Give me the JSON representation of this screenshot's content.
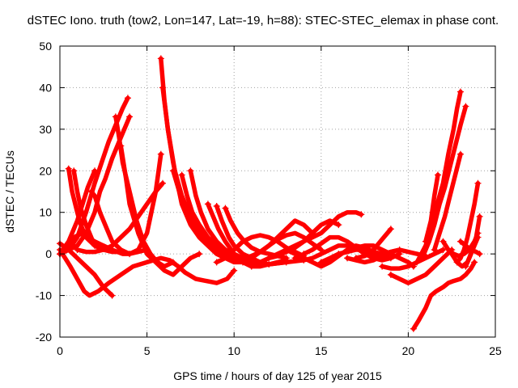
{
  "chart_data": {
    "type": "line",
    "title": "dSTEC Iono. truth (tow2, Lon=147, Lat=-19, h=88): STEC-STEC_elemax in phase cont.",
    "xlabel": "GPS time / hours of day 125 of year 2015",
    "ylabel": "dSTEC  / TECUs",
    "xlim": [
      0,
      25
    ],
    "ylim": [
      -20,
      50
    ],
    "xticks": [
      0,
      5,
      10,
      15,
      20,
      25
    ],
    "yticks": [
      -20,
      -10,
      0,
      10,
      20,
      30,
      40,
      50
    ],
    "grid": true,
    "legend": "none",
    "marker": "plus",
    "color": "#ff0000",
    "series": [
      {
        "x": [
          0.0,
          0.5,
          1.0,
          1.5,
          2.0,
          2.5,
          3.0
        ],
        "y": [
          2.5,
          1.0,
          -1.0,
          -3.0,
          -5.0,
          -8.0,
          -10.0
        ]
      },
      {
        "x": [
          0.0,
          0.3,
          0.6,
          1.0,
          1.4,
          1.7,
          2.2,
          2.8,
          3.5,
          4.2,
          5.0,
          5.8,
          6.3,
          6.8,
          7.2,
          7.8,
          8.4,
          9.0,
          9.6,
          10.0
        ],
        "y": [
          1.0,
          -1.0,
          -3.0,
          -6.0,
          -9.0,
          -10.0,
          -9.0,
          -7.0,
          -5.0,
          -3.0,
          -2.0,
          -1.0,
          -1.5,
          -3.0,
          -4.5,
          -6.0,
          -6.5,
          -7.0,
          -6.0,
          -4.0
        ]
      },
      {
        "x": [
          0.0,
          0.5,
          1.0,
          1.5,
          2.0,
          2.3,
          2.6,
          3.0,
          3.5,
          4.0
        ],
        "y": [
          0.0,
          1.0,
          2.0,
          5.0,
          10.0,
          15.0,
          18.0,
          23.0,
          28.0,
          33.0
        ]
      },
      {
        "x": [
          0.0,
          0.5,
          1.0,
          1.3,
          1.6,
          2.0
        ],
        "y": [
          0.0,
          3.0,
          8.0,
          12.0,
          16.0,
          20.0
        ]
      },
      {
        "x": [
          0.0,
          0.8,
          1.3,
          1.6,
          2.0,
          2.5,
          3.0,
          3.3,
          3.6,
          4.0,
          4.5,
          5.0,
          5.5,
          5.8
        ],
        "y": [
          0.0,
          4.0,
          5.0,
          4.0,
          3.0,
          2.0,
          1.0,
          0.5,
          0.0,
          0.0,
          1.0,
          5.0,
          15.0,
          24.0
        ]
      },
      {
        "x": [
          0.0,
          0.5,
          1.0,
          1.5,
          2.0,
          2.4,
          2.8,
          3.1,
          3.4,
          3.6,
          3.9
        ],
        "y": [
          0.0,
          1.0,
          4.0,
          10.0,
          17.0,
          22.0,
          27.0,
          30.0,
          33.0,
          35.0,
          37.5
        ]
      },
      {
        "x": [
          0.5,
          0.7,
          1.0,
          1.2,
          1.5,
          2.0,
          2.5,
          3.0,
          3.5,
          4.0
        ],
        "y": [
          20.5,
          15.0,
          10.0,
          7.0,
          4.0,
          2.0,
          1.0,
          0.5,
          0.5,
          0.0
        ]
      },
      {
        "x": [
          0.8,
          1.0,
          1.2,
          1.5,
          1.8,
          2.0
        ],
        "y": [
          20.0,
          15.0,
          11.0,
          7.0,
          4.0,
          2.0
        ]
      },
      {
        "x": [
          1.0,
          1.5,
          2.0,
          2.5,
          3.0,
          3.5,
          4.0,
          4.5,
          5.0,
          5.5,
          5.9
        ],
        "y": [
          1.0,
          0.5,
          0.5,
          1.0,
          2.0,
          4.0,
          6.0,
          9.0,
          12.0,
          15.0,
          17.0
        ]
      },
      {
        "x": [
          1.8,
          2.0,
          2.3,
          2.7,
          3.0,
          3.5,
          4.0,
          4.5,
          5.0
        ],
        "y": [
          15.0,
          14.0,
          10.0,
          6.0,
          3.0,
          1.0,
          0.0,
          0.5,
          1.0
        ]
      },
      {
        "x": [
          3.2,
          3.4,
          3.6,
          4.0,
          4.4,
          4.8,
          5.2,
          5.6,
          6.0,
          6.5
        ],
        "y": [
          33.0,
          28.0,
          22.0,
          15.0,
          8.0,
          3.0,
          0.0,
          -2.0,
          -3.0,
          -2.0
        ]
      },
      {
        "x": [
          3.5,
          3.8,
          4.0,
          4.5,
          5.0,
          5.5,
          6.0,
          6.5,
          7.0,
          7.5,
          8.0
        ],
        "y": [
          26.0,
          18.0,
          12.0,
          5.0,
          0.0,
          -2.0,
          -4.0,
          -5.0,
          -3.0,
          -1.0,
          0.0
        ]
      },
      {
        "x": [
          5.8,
          6.0,
          6.2,
          6.5,
          6.8,
          7.0,
          7.5,
          8.0,
          8.5,
          9.0,
          9.5,
          10.0,
          10.5,
          11.0
        ],
        "y": [
          47.0,
          37.0,
          30.0,
          22.0,
          16.0,
          12.0,
          7.0,
          4.0,
          2.0,
          0.0,
          -1.0,
          -2.0,
          -2.0,
          -1.5
        ]
      },
      {
        "x": [
          5.9,
          6.2,
          6.6,
          7.0,
          7.5,
          8.0,
          8.5,
          9.0,
          9.5,
          10.0
        ],
        "y": [
          40.0,
          30.0,
          20.0,
          14.0,
          9.0,
          6.0,
          3.0,
          1.0,
          0.0,
          -1.0
        ]
      },
      {
        "x": [
          6.5,
          7.0,
          7.5,
          8.0,
          8.5,
          9.0,
          9.5,
          10.0,
          11.0
        ],
        "y": [
          20.0,
          13.0,
          8.0,
          5.0,
          3.0,
          1.0,
          0.0,
          -1.0,
          -2.0
        ]
      },
      {
        "x": [
          7.0,
          7.3,
          7.6,
          8.0,
          8.5,
          9.0,
          9.5,
          10.0,
          11.0,
          12.0
        ],
        "y": [
          19.0,
          14.0,
          10.0,
          7.0,
          4.0,
          2.0,
          0.0,
          -1.0,
          -2.0,
          -2.5
        ]
      },
      {
        "x": [
          7.5,
          7.8,
          8.1,
          8.5,
          9.0,
          9.5,
          10.0,
          10.5,
          11.0,
          12.0,
          13.0
        ],
        "y": [
          20.0,
          14.0,
          10.0,
          6.0,
          3.0,
          1.0,
          0.0,
          -1.0,
          -2.0,
          -2.5,
          -2.0
        ]
      },
      {
        "x": [
          8.5,
          8.8,
          9.1,
          9.5,
          10.0,
          10.5,
          11.0,
          11.5,
          12.0,
          13.0,
          14.0
        ],
        "y": [
          12.0,
          9.0,
          6.0,
          3.0,
          0.0,
          -2.0,
          -3.0,
          -3.0,
          -2.5,
          -2.0,
          -1.5
        ]
      },
      {
        "x": [
          9.0,
          9.3,
          9.7,
          10.0,
          10.5,
          11.0,
          11.5,
          12.0,
          12.5,
          13.0
        ],
        "y": [
          11.5,
          8.0,
          4.0,
          2.0,
          0.0,
          -1.0,
          -2.0,
          -2.5,
          -2.0,
          -1.5
        ]
      },
      {
        "x": [
          9.5,
          9.8,
          10.2,
          10.6,
          11.0,
          11.5,
          12.0,
          12.5,
          13.0
        ],
        "y": [
          11.0,
          8.0,
          5.0,
          3.0,
          1.5,
          0.5,
          0.0,
          -0.5,
          -1.0
        ]
      },
      {
        "x": [
          9.0,
          9.5,
          10.0,
          10.5,
          11.0,
          11.5,
          12.0,
          12.5,
          13.0,
          13.5,
          14.0
        ],
        "y": [
          -2.0,
          -1.0,
          1.0,
          3.0,
          4.0,
          4.5,
          4.0,
          3.0,
          1.5,
          0.5,
          -0.5
        ]
      },
      {
        "x": [
          10.0,
          10.5,
          11.0,
          11.5,
          12.0,
          12.5,
          13.0,
          13.5,
          14.0,
          14.5,
          15.0
        ],
        "y": [
          -1.0,
          -1.0,
          -0.5,
          0.5,
          2.0,
          3.5,
          4.5,
          5.0,
          4.0,
          2.5,
          1.0
        ]
      },
      {
        "x": [
          10.5,
          11.0,
          11.5,
          12.0,
          12.5,
          13.0,
          13.5,
          14.0,
          14.5
        ],
        "y": [
          -2.0,
          -1.0,
          0.5,
          2.0,
          4.0,
          6.0,
          8.0,
          7.0,
          5.0
        ]
      },
      {
        "x": [
          11.0,
          11.5,
          12.0,
          12.5,
          13.0,
          13.5,
          14.0,
          14.5,
          15.0,
          15.5,
          16.0
        ],
        "y": [
          -3.0,
          -2.0,
          -1.0,
          0.0,
          1.0,
          2.0,
          3.0,
          5.0,
          7.0,
          8.0,
          7.0
        ]
      },
      {
        "x": [
          12.0,
          12.5,
          13.0,
          13.5,
          14.0,
          14.5,
          15.0,
          15.5,
          16.0,
          16.5,
          17.0,
          17.3
        ],
        "y": [
          -1.0,
          -0.5,
          0.5,
          1.5,
          3.0,
          4.0,
          5.0,
          7.0,
          9.0,
          10.0,
          10.0,
          9.5
        ]
      },
      {
        "x": [
          13.0,
          13.5,
          14.0,
          14.5,
          15.0,
          15.5,
          16.0,
          16.5,
          17.0,
          17.5,
          18.0
        ],
        "y": [
          1.0,
          0.0,
          -1.0,
          -2.0,
          -3.0,
          -2.0,
          -0.5,
          1.0,
          2.0,
          1.5,
          0.5
        ]
      },
      {
        "x": [
          13.5,
          14.0,
          14.5,
          15.0,
          15.5,
          16.0,
          16.5,
          17.0,
          17.5,
          18.0,
          18.5,
          19.0
        ],
        "y": [
          -1.0,
          -1.5,
          -1.0,
          0.0,
          1.0,
          2.0,
          2.0,
          1.5,
          0.5,
          0.0,
          -0.5,
          -1.0
        ]
      },
      {
        "x": [
          14.0,
          14.5,
          15.0,
          15.5,
          16.0,
          16.5,
          17.0,
          17.5,
          18.0,
          18.5,
          19.0,
          19.5
        ],
        "y": [
          0.0,
          1.0,
          2.5,
          4.0,
          4.0,
          3.0,
          1.5,
          0.0,
          -1.0,
          -1.5,
          -1.0,
          0.0
        ]
      },
      {
        "x": [
          15.0,
          15.5,
          16.0,
          16.5,
          17.0,
          17.5,
          18.0,
          18.5,
          19.0,
          19.5
        ],
        "y": [
          -2.0,
          -1.0,
          0.0,
          0.5,
          1.0,
          1.0,
          0.5,
          0.0,
          0.5,
          1.0
        ]
      },
      {
        "x": [
          16.0,
          16.5,
          17.0,
          17.5,
          18.0,
          18.5,
          19.0,
          19.5,
          20.0,
          20.3
        ],
        "y": [
          0.0,
          0.5,
          1.5,
          2.0,
          2.0,
          1.0,
          0.0,
          -1.0,
          -2.0,
          -3.0
        ]
      },
      {
        "x": [
          16.5,
          17.0,
          17.5,
          18.0,
          18.5,
          19.0,
          19.5,
          20.0,
          20.5,
          21.0
        ],
        "y": [
          -1.0,
          -1.5,
          -2.0,
          -1.5,
          -0.5,
          0.5,
          1.0,
          0.5,
          0.0,
          -0.5
        ]
      },
      {
        "x": [
          17.0,
          17.5,
          18.0,
          18.5,
          19.0
        ],
        "y": [
          -1.0,
          -0.5,
          1.0,
          3.5,
          6.0
        ]
      },
      {
        "x": [
          18.5,
          19.0,
          19.5,
          20.0,
          20.5,
          21.0,
          21.5,
          22.0
        ],
        "y": [
          -3.0,
          -3.5,
          -3.5,
          -3.0,
          -2.0,
          -1.0,
          0.0,
          1.0
        ]
      },
      {
        "x": [
          19.0,
          19.5,
          20.0,
          20.5,
          21.0,
          21.5,
          22.0,
          22.5
        ],
        "y": [
          -5.0,
          -6.0,
          -7.0,
          -6.0,
          -5.0,
          -3.0,
          -1.0,
          1.0
        ]
      },
      {
        "x": [
          20.3,
          20.6,
          21.0,
          21.3,
          21.6,
          22.0,
          22.3,
          22.6,
          23.0,
          23.3,
          23.6,
          23.8
        ],
        "y": [
          -18.0,
          -16.0,
          -13.0,
          -10.0,
          -9.0,
          -8.0,
          -7.0,
          -6.5,
          -6.0,
          -5.0,
          -3.5,
          -2.0
        ]
      },
      {
        "x": [
          20.5,
          21.0,
          21.3,
          21.6,
          22.0,
          22.3,
          22.6,
          22.8,
          23.0
        ],
        "y": [
          -2.0,
          2.0,
          6.0,
          11.0,
          17.0,
          24.0,
          30.0,
          35.0,
          39.0
        ]
      },
      {
        "x": [
          20.8,
          21.2,
          21.5,
          21.8,
          22.1,
          22.4,
          22.7,
          23.0,
          23.3
        ],
        "y": [
          -1.0,
          3.0,
          7.0,
          12.0,
          16.0,
          21.0,
          26.0,
          31.0,
          35.5
        ]
      },
      {
        "x": [
          21.0,
          21.3,
          21.5,
          21.7
        ],
        "y": [
          3.0,
          8.0,
          14.0,
          19.0
        ]
      },
      {
        "x": [
          21.5,
          21.8,
          22.1,
          22.4,
          22.7,
          23.0
        ],
        "y": [
          1.0,
          5.0,
          9.0,
          14.0,
          19.0,
          24.0
        ]
      },
      {
        "x": [
          22.0,
          22.3,
          22.6,
          22.9,
          23.2,
          23.5,
          23.8,
          24.0
        ],
        "y": [
          3.0,
          1.0,
          0.0,
          -0.5,
          0.0,
          1.0,
          3.0,
          5.0
        ]
      },
      {
        "x": [
          22.5,
          22.8,
          23.1,
          23.4,
          23.7,
          24.0
        ],
        "y": [
          0.0,
          -2.0,
          -3.0,
          -2.0,
          1.0,
          4.0
        ]
      },
      {
        "x": [
          22.8,
          23.0,
          23.2,
          23.4,
          23.6,
          23.8,
          24.0
        ],
        "y": [
          -2.0,
          -1.0,
          1.0,
          4.0,
          8.0,
          12.0,
          17.0
        ]
      },
      {
        "x": [
          23.0,
          23.3,
          23.6,
          23.9,
          24.1
        ],
        "y": [
          3.0,
          2.0,
          1.0,
          0.5,
          0.0
        ]
      },
      {
        "x": [
          23.3,
          23.6,
          23.9,
          24.1
        ],
        "y": [
          -3.0,
          0.0,
          4.0,
          9.0
        ]
      }
    ]
  }
}
